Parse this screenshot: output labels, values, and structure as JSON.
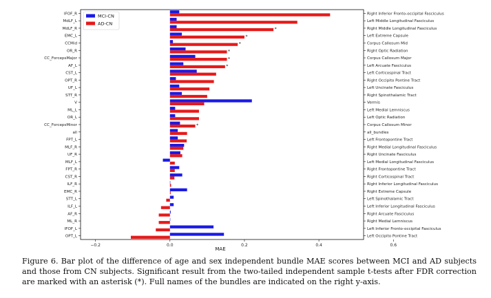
{
  "chart_data": {
    "type": "bar",
    "orientation": "horizontal",
    "xlabel": "MAE",
    "xlim": [
      -0.24,
      0.52
    ],
    "xticks": [
      -0.2,
      0.0,
      0.2,
      0.4,
      0.6
    ],
    "grid": false,
    "legend_position": "top-left",
    "significance_marker": "*",
    "categories": [
      "IFOF_R",
      "MdLF_L",
      "MdLF_R",
      "EMC_L",
      "CCMid",
      "OR_R",
      "CC_ForcepsMajor",
      "AF_L",
      "CST_L",
      "OPT_R",
      "UF_L",
      "STT_R",
      "V",
      "ML_L",
      "OR_L",
      "CC_ForcepsMinor",
      "all",
      "FPT_L",
      "MLF_R",
      "UF_R",
      "MLF_L",
      "FPT_R",
      "CST_R",
      "ILF_R",
      "EMC_R",
      "STT_L",
      "ILF_L",
      "AF_R",
      "ML_R",
      "IFOF_L",
      "OPT_L"
    ],
    "full_names": [
      "Right Inferior Fronto-occipital Fasciculus",
      "Left Middle Longitudinal Fasciculus",
      "Right Middle Longitudinal Fasciculus",
      "Left Extreme Capsule",
      "Corpus Callosum Mid",
      "Right Optic Radiation",
      "Corpus Callosum Major",
      "Left Arcuate Fasciculus",
      "Left Corticospinal Tract",
      "Right Occipito Pontine Tract",
      "Left Uncinate Fasciculus",
      "Right Spinothalamic Tract",
      "Vermis",
      "Left Medial Lemniscus",
      "Left Optic Radiation",
      "Corpus Callosum Minor",
      "all_bundles",
      "Left Frontopontine Tract",
      "Right Medial Longitudinal Fasciculus",
      "Right Uncinate Fasciculus",
      "Left Medial Longitudinal Fasciculus",
      "Right Frontopontine Tract",
      "Right Corticospinal Tract",
      "Right Inferior Longitudinal Fasciculus",
      "Right Extreme Capsule",
      "Left Spinothalamic Tract",
      "Left Inferior Longitudinal Fasciculus",
      "Right Arcuate Fasciculus",
      "Right Medial Lemniscus",
      "Left Inferior Fronto-occipital Fasciculus",
      "Left Occipito Pontine Tract"
    ],
    "series": [
      {
        "name": "MCI-CN",
        "color": "#1a1ae6",
        "values": [
          0.025,
          0.018,
          0.018,
          0.032,
          0.008,
          0.042,
          0.068,
          0.036,
          0.072,
          0.016,
          0.025,
          0.032,
          0.22,
          0.014,
          0.014,
          0.027,
          0.021,
          0.021,
          0.038,
          0.028,
          -0.019,
          0.025,
          0.033,
          0.001,
          0.046,
          0.01,
          0.01,
          0.002,
          0.0,
          0.117,
          0.145
        ],
        "significant": [
          false,
          false,
          false,
          false,
          false,
          false,
          false,
          false,
          false,
          false,
          false,
          false,
          false,
          false,
          false,
          false,
          false,
          false,
          false,
          false,
          false,
          false,
          false,
          false,
          false,
          false,
          false,
          false,
          false,
          false,
          false
        ]
      },
      {
        "name": "AD-CN",
        "color": "#e61a1a",
        "values": [
          0.43,
          0.342,
          0.278,
          0.2,
          0.182,
          0.153,
          0.153,
          0.148,
          0.124,
          0.118,
          0.106,
          0.1,
          0.092,
          0.078,
          0.078,
          0.068,
          0.046,
          0.045,
          0.036,
          0.033,
          0.013,
          0.013,
          0.012,
          0.003,
          0.002,
          -0.01,
          -0.024,
          -0.03,
          -0.03,
          -0.038,
          -0.105
        ],
        "significant": [
          false,
          false,
          true,
          true,
          true,
          true,
          true,
          true,
          false,
          false,
          false,
          false,
          false,
          false,
          false,
          true,
          false,
          false,
          false,
          false,
          false,
          false,
          false,
          false,
          false,
          false,
          false,
          false,
          false,
          false,
          false
        ]
      }
    ]
  },
  "caption": "Figure 6. Bar plot of the difference of age and sex independent bundle MAE scores between MCI and AD subjects and those from CN subjects. Significant result from the two-tailed independent sample t-tests after FDR correction are marked with an asterisk (*). Full names of the bundles are indicated on the right y-axis."
}
